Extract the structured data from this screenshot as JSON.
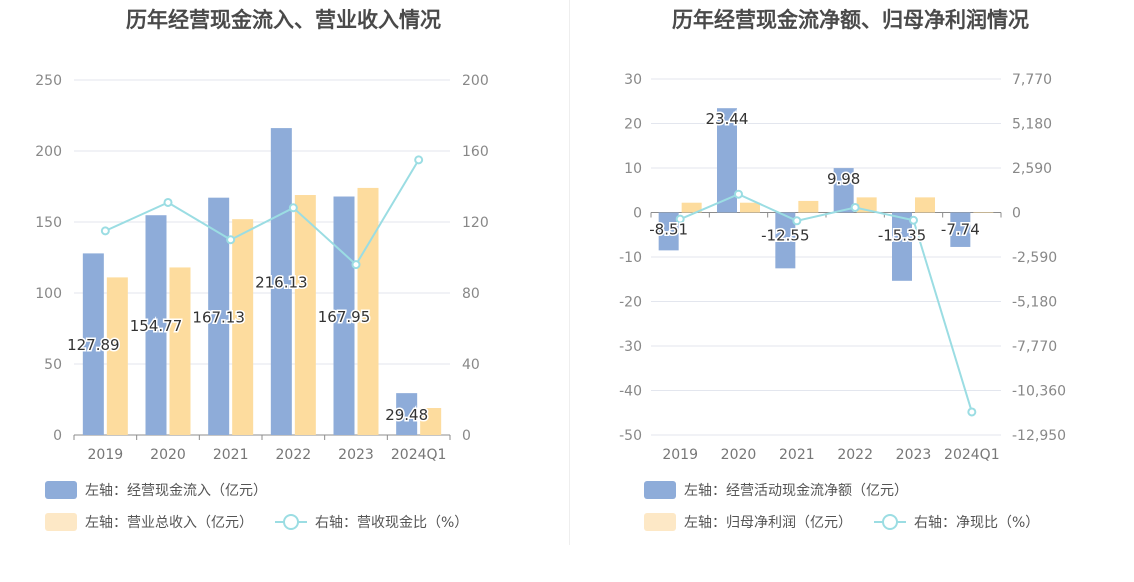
{
  "chart_data": [
    {
      "type": "bar",
      "title": "历年经营现金流入、营业收入情况",
      "categories": [
        "2019",
        "2020",
        "2021",
        "2022",
        "2023",
        "2024Q1"
      ],
      "left_axis": {
        "ylim": [
          0,
          250
        ],
        "ticks": [
          0,
          50,
          100,
          150,
          200,
          250
        ]
      },
      "right_axis": {
        "ylim": [
          0,
          200
        ],
        "ticks": [
          0,
          40,
          80,
          120,
          160,
          200
        ]
      },
      "grid": true,
      "legend_position": "bottom",
      "series": [
        {
          "name": "左轴：经营现金流入（亿元）",
          "type": "bar",
          "axis": "left",
          "color": "#8eacd9",
          "values": [
            127.89,
            154.77,
            167.13,
            216.13,
            167.95,
            29.48
          ],
          "labels": [
            "127.89",
            "154.77",
            "167.13",
            "216.13",
            "167.95",
            "29.48"
          ]
        },
        {
          "name": "左轴：营业总收入（亿元）",
          "type": "bar",
          "axis": "left",
          "color": "#fddc9e",
          "values": [
            111,
            118,
            152,
            169,
            174,
            19
          ]
        },
        {
          "name": "右轴：营收现金比（%）",
          "type": "line",
          "axis": "right",
          "color": "#9bdde3",
          "values": [
            115,
            131,
            110,
            128,
            96,
            155
          ]
        }
      ]
    },
    {
      "type": "bar",
      "title": "历年经营现金流净额、归母净利润情况",
      "categories": [
        "2019",
        "2020",
        "2021",
        "2022",
        "2023",
        "2024Q1"
      ],
      "left_axis": {
        "ylim": [
          -50,
          30
        ],
        "ticks": [
          30,
          20,
          10,
          0,
          -10,
          -20,
          -30,
          -40,
          -50
        ]
      },
      "right_axis": {
        "ylim": [
          -12950,
          7770
        ],
        "ticks": [
          "7,770",
          "5,180",
          "2,590",
          "0",
          "-2,590",
          "-5,180",
          "-7,770",
          "-10,360",
          "-12,950"
        ]
      },
      "grid": true,
      "legend_position": "bottom",
      "series": [
        {
          "name": "左轴：经营活动现金流净额（亿元）",
          "type": "bar",
          "axis": "left",
          "color": "#8eacd9",
          "values": [
            -8.51,
            23.44,
            -12.55,
            9.98,
            -15.35,
            -7.74
          ],
          "labels": [
            "-8.51",
            "23.44",
            "-12.55",
            "9.98",
            "-15.35",
            "-7.74"
          ]
        },
        {
          "name": "左轴：归母净利润（亿元）",
          "type": "bar",
          "axis": "left",
          "color": "#fddc9e",
          "values": [
            2.2,
            2.2,
            2.6,
            3.4,
            3.4,
            0.05
          ]
        },
        {
          "name": "右轴：净现比（%）",
          "type": "line",
          "axis": "right",
          "color": "#9bdde3",
          "values": [
            -387,
            1065,
            -483,
            293,
            -451,
            -11610
          ]
        }
      ]
    }
  ]
}
